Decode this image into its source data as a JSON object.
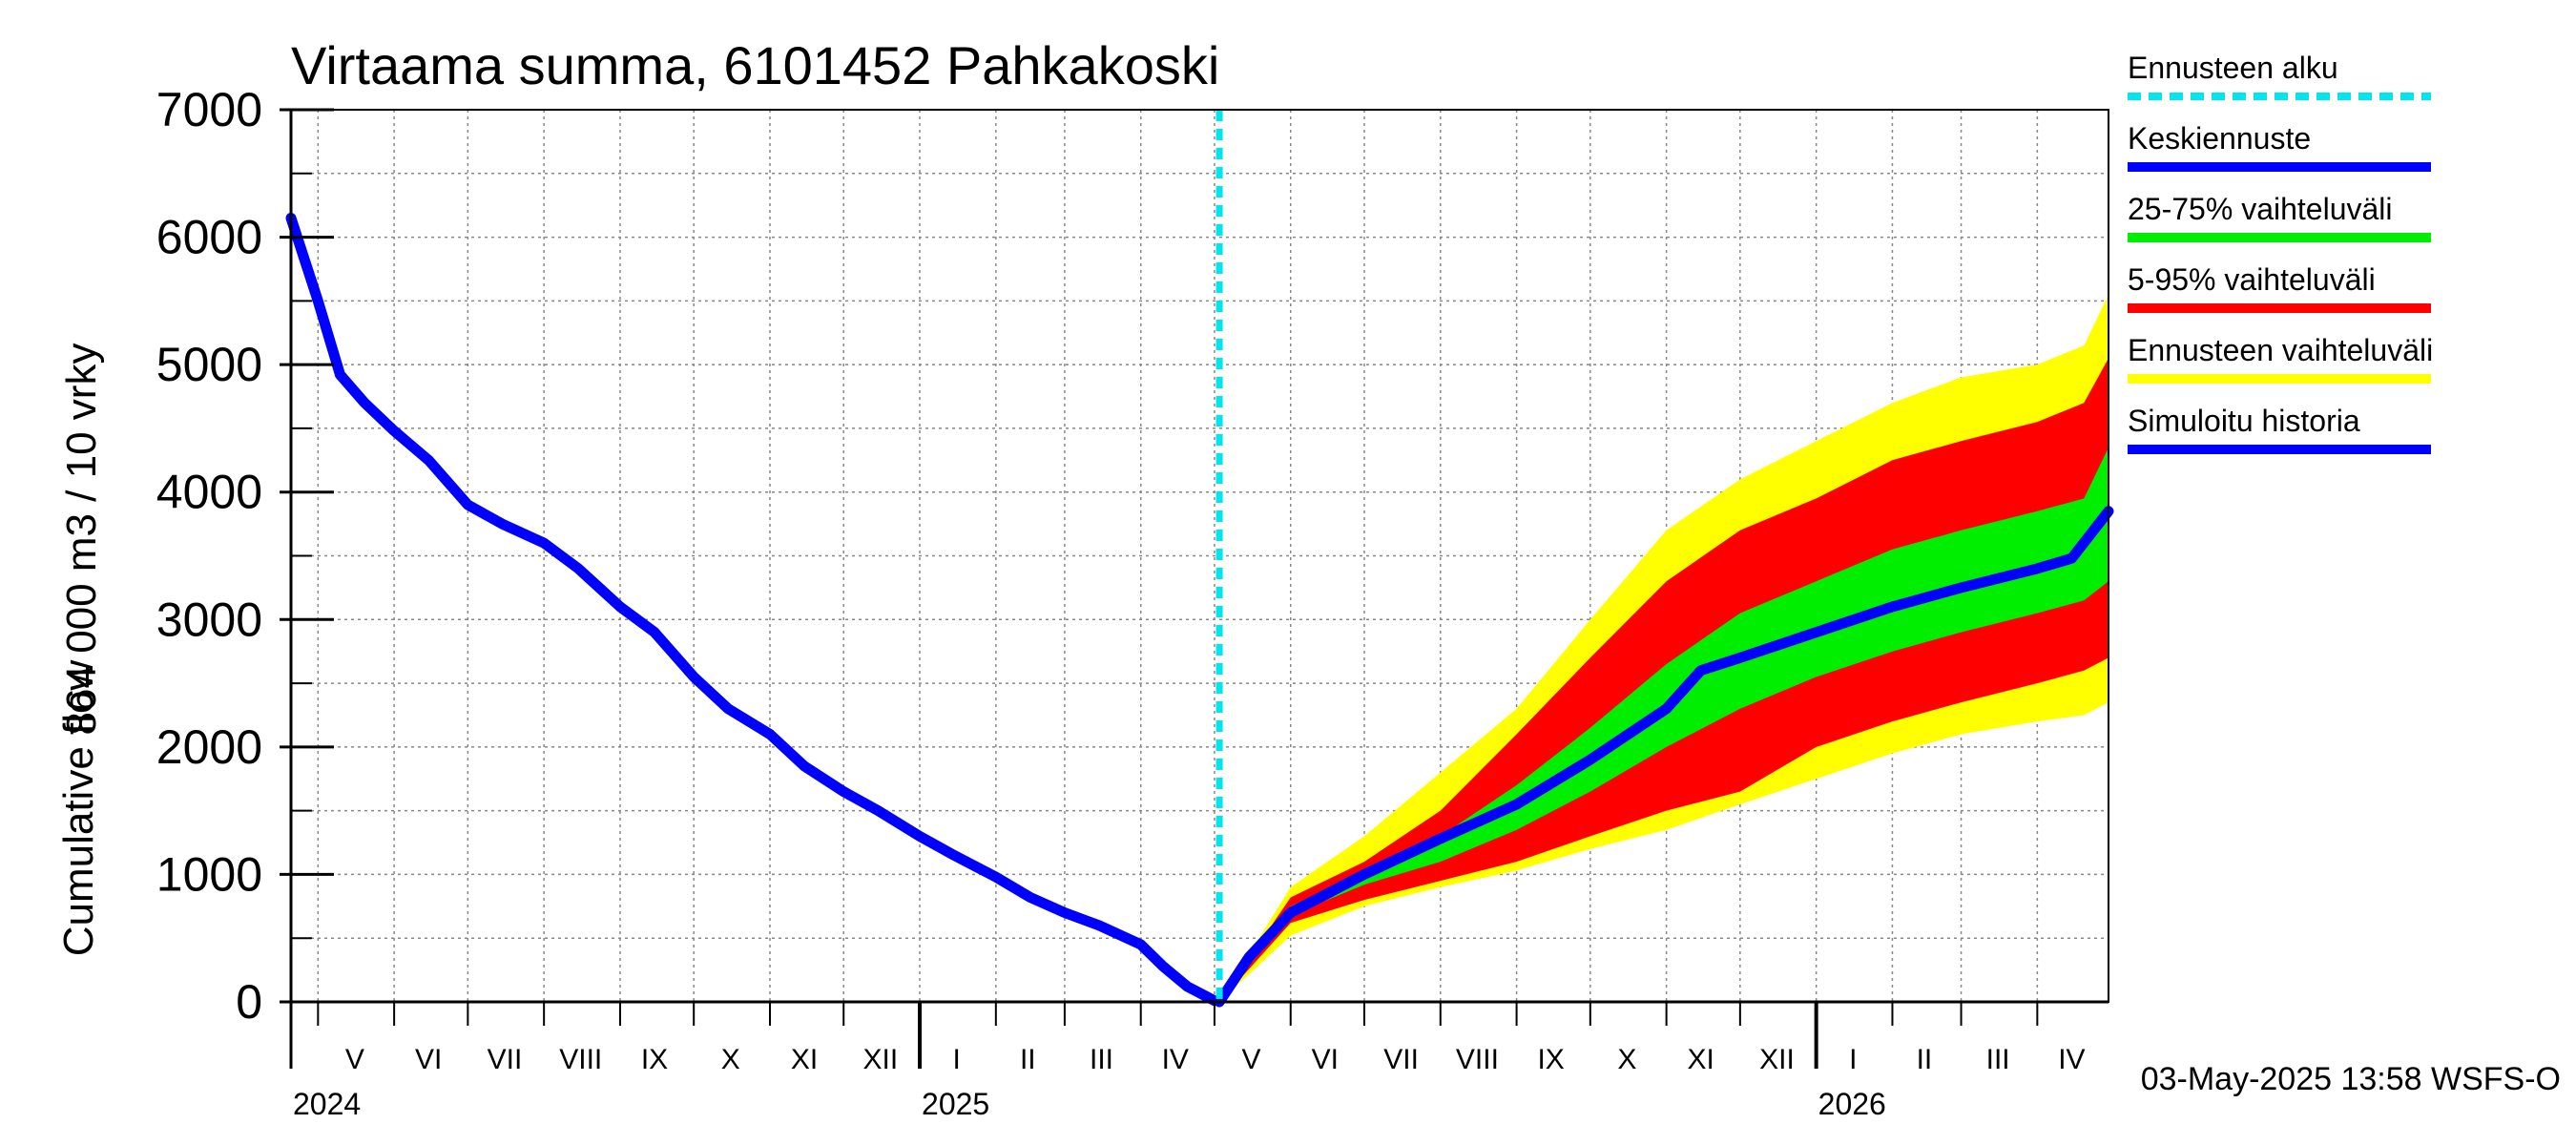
{
  "chart_data": {
    "type": "area",
    "title": "Virtaama summa, 6101452 Pahkakoski",
    "ylabel_line1": "864 000 m3 / 10 vrky",
    "ylabel_line2": "Cumulative flow",
    "ylim": [
      0,
      7000
    ],
    "yticks": [
      "0",
      "1000",
      "2000",
      "3000",
      "4000",
      "5000",
      "6000",
      "7000"
    ],
    "x_start": "2024-04-20",
    "x_end": "2026-04-30",
    "forecast_start": "2025-05-03",
    "month_labels": [
      {
        "label": "V",
        "date": "2024-05-16"
      },
      {
        "label": "VI",
        "date": "2024-06-15"
      },
      {
        "label": "VII",
        "date": "2024-07-16"
      },
      {
        "label": "VIII",
        "date": "2024-08-16"
      },
      {
        "label": "IX",
        "date": "2024-09-15"
      },
      {
        "label": "X",
        "date": "2024-10-16"
      },
      {
        "label": "XI",
        "date": "2024-11-15"
      },
      {
        "label": "XII",
        "date": "2024-12-16"
      },
      {
        "label": "I",
        "date": "2025-01-16"
      },
      {
        "label": "II",
        "date": "2025-02-14"
      },
      {
        "label": "III",
        "date": "2025-03-16"
      },
      {
        "label": "IV",
        "date": "2025-04-15"
      },
      {
        "label": "V",
        "date": "2025-05-16"
      },
      {
        "label": "VI",
        "date": "2025-06-15"
      },
      {
        "label": "VII",
        "date": "2025-07-16"
      },
      {
        "label": "VIII",
        "date": "2025-08-16"
      },
      {
        "label": "IX",
        "date": "2025-09-15"
      },
      {
        "label": "X",
        "date": "2025-10-16"
      },
      {
        "label": "XI",
        "date": "2025-11-15"
      },
      {
        "label": "XII",
        "date": "2025-12-16"
      },
      {
        "label": "I",
        "date": "2026-01-16"
      },
      {
        "label": "II",
        "date": "2026-02-14"
      },
      {
        "label": "III",
        "date": "2026-03-16"
      },
      {
        "label": "IV",
        "date": "2026-04-15"
      }
    ],
    "year_labels": [
      {
        "label": "2024",
        "date": "2024-04-20"
      },
      {
        "label": "2025",
        "date": "2025-01-01"
      },
      {
        "label": "2026",
        "date": "2026-01-01"
      }
    ],
    "colors": {
      "forecast_start": "#00e5ee",
      "median": "#0000ff",
      "band_25_75": "#00ee00",
      "band_5_95": "#ff0000",
      "band_full": "#ffff00",
      "history": "#0000ff"
    },
    "history": {
      "x": [
        "2024-04-20",
        "2024-05-01",
        "2024-05-10",
        "2024-05-20",
        "2024-06-01",
        "2024-06-15",
        "2024-07-01",
        "2024-07-15",
        "2024-08-01",
        "2024-08-15",
        "2024-09-01",
        "2024-09-15",
        "2024-10-01",
        "2024-10-15",
        "2024-11-01",
        "2024-11-15",
        "2024-12-01",
        "2024-12-15",
        "2025-01-01",
        "2025-01-15",
        "2025-02-01",
        "2025-02-15",
        "2025-03-01",
        "2025-03-15",
        "2025-04-01",
        "2025-04-10",
        "2025-04-20",
        "2025-05-01"
      ],
      "y": [
        6150,
        5500,
        4920,
        4700,
        4480,
        4250,
        3900,
        3750,
        3600,
        3400,
        3100,
        2900,
        2550,
        2300,
        2100,
        1850,
        1650,
        1500,
        1300,
        1150,
        980,
        820,
        700,
        600,
        450,
        280,
        120,
        10
      ]
    },
    "series": [
      {
        "name": "Keskiennuste",
        "x": [
          "2025-05-03",
          "2025-05-15",
          "2025-06-01",
          "2025-07-01",
          "2025-08-01",
          "2025-09-01",
          "2025-10-01",
          "2025-11-01",
          "2025-11-15",
          "2025-12-01",
          "2026-01-01",
          "2026-02-01",
          "2026-03-01",
          "2026-04-01",
          "2026-04-15",
          "2026-04-30"
        ],
        "y": [
          0,
          350,
          700,
          1000,
          1280,
          1550,
          1900,
          2300,
          2600,
          2700,
          2900,
          3100,
          3250,
          3400,
          3480,
          3850
        ]
      }
    ],
    "bands": {
      "x": [
        "2025-05-03",
        "2025-06-01",
        "2025-07-01",
        "2025-08-01",
        "2025-09-01",
        "2025-10-01",
        "2025-11-01",
        "2025-12-01",
        "2026-01-01",
        "2026-02-01",
        "2026-03-01",
        "2026-04-01",
        "2026-04-20",
        "2026-04-30"
      ],
      "full_low": [
        0,
        520,
        750,
        900,
        1030,
        1200,
        1350,
        1550,
        1750,
        1950,
        2100,
        2200,
        2250,
        2350
      ],
      "full_high": [
        0,
        900,
        1300,
        1800,
        2300,
        3000,
        3700,
        4100,
        4400,
        4700,
        4900,
        5000,
        5150,
        5550
      ],
      "p5": [
        0,
        620,
        800,
        950,
        1100,
        1300,
        1500,
        1650,
        2000,
        2200,
        2350,
        2500,
        2600,
        2700
      ],
      "p95": [
        0,
        820,
        1100,
        1500,
        2100,
        2700,
        3300,
        3700,
        3950,
        4250,
        4400,
        4550,
        4700,
        5050
      ],
      "p25": [
        0,
        680,
        920,
        1100,
        1350,
        1650,
        2000,
        2300,
        2550,
        2750,
        2900,
        3050,
        3150,
        3300
      ],
      "p75": [
        0,
        750,
        1020,
        1300,
        1700,
        2150,
        2650,
        3050,
        3300,
        3550,
        3700,
        3850,
        3950,
        4350
      ]
    },
    "legend": [
      {
        "label": "Ennusteen alku",
        "kind": "dashed",
        "color": "#00e5ee"
      },
      {
        "label": "Keskiennuste",
        "kind": "line",
        "color": "#0000ff"
      },
      {
        "label": "25-75% vaihteluväli",
        "kind": "line",
        "color": "#00ee00"
      },
      {
        "label": "5-95% vaihteluväli",
        "kind": "line",
        "color": "#ff0000"
      },
      {
        "label": "Ennusteen vaihteluväli",
        "kind": "line",
        "color": "#ffff00"
      },
      {
        "label": "Simuloitu historia",
        "kind": "line",
        "color": "#0000ff"
      }
    ],
    "grid": true,
    "legend_position": "right"
  },
  "footer_stamp": "03-May-2025 13:58 WSFS-O"
}
